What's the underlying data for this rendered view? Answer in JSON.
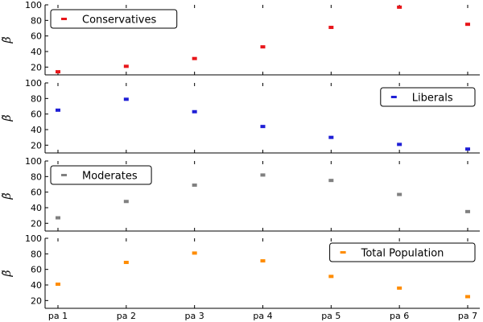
{
  "chart_data": {
    "type": "scatter",
    "categories": [
      "pa 1",
      "pa 2",
      "pa 3",
      "pa 4",
      "pa 5",
      "pa 6",
      "pa 7"
    ],
    "ylabel": "β̃",
    "ylim": [
      10,
      100
    ],
    "yticks": [
      20,
      40,
      60,
      80,
      100
    ],
    "grid": false,
    "panels": [
      {
        "name": "Conservatives",
        "color": "#e8161a",
        "legend": "top-left",
        "values": [
          14,
          21,
          31,
          46,
          71,
          97,
          75
        ]
      },
      {
        "name": "Liberals",
        "color": "#1f1fd6",
        "legend": "top-right",
        "values": [
          65,
          79,
          63,
          44,
          30,
          21,
          15
        ]
      },
      {
        "name": "Moderates",
        "color": "#808080",
        "legend": "top-left",
        "values": [
          27,
          48,
          69,
          82,
          75,
          57,
          35
        ]
      },
      {
        "name": "Total Population",
        "color": "#ff8c00",
        "legend": "top-right",
        "values": [
          41,
          69,
          81,
          71,
          51,
          36,
          25
        ]
      }
    ]
  }
}
